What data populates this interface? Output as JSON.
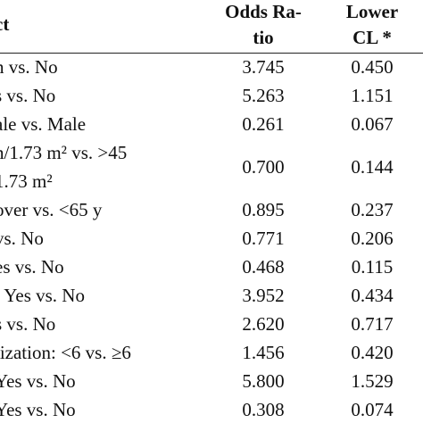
{
  "header": {
    "effect": "ct",
    "odds_ratio_line1": "Odds Ra-",
    "odds_ratio_line2": "tio",
    "lower_cl_line1": "Lower",
    "lower_cl_line2": "CL *"
  },
  "rows": [
    {
      "effect": "n vs. No",
      "or": "3.745",
      "lcl": "0.450"
    },
    {
      "effect": "s vs. No",
      "or": "5.263",
      "lcl": "1.151"
    },
    {
      "effect": "ale vs. Male",
      "or": "0.261",
      "lcl": "0.067"
    },
    {
      "effect_line1": "n/1.73 m² vs. >45",
      "effect_line2": "1.73 m²",
      "or": "0.700",
      "lcl": "0.144"
    },
    {
      "effect": "over vs. <65 y",
      "or": "0.895",
      "lcl": "0.237"
    },
    {
      "effect": "vs. No",
      "or": "0.771",
      "lcl": "0.206"
    },
    {
      "effect": "es vs. No",
      "or": "0.468",
      "lcl": "0.115"
    },
    {
      "effect": ": Yes vs. No",
      "or": "3.952",
      "lcl": "0.434"
    },
    {
      "effect": "s vs. No",
      "or": "2.620",
      "lcl": "0.717"
    },
    {
      "effect": "lization: <6 vs. ≥6",
      "or": "1.456",
      "lcl": "0.420"
    },
    {
      "effect": "Yes vs. No",
      "or": "5.800",
      "lcl": "1.529"
    },
    {
      "effect": "Yes vs. No",
      "or": "0.308",
      "lcl": "0.074"
    }
  ]
}
